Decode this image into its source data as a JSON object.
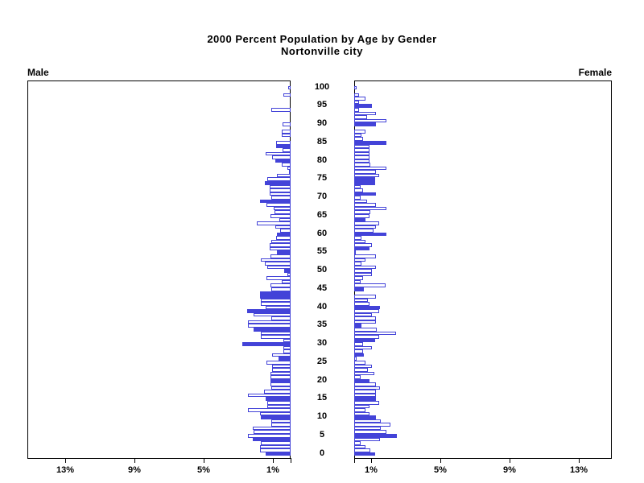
{
  "title": {
    "line1": "2000 Percent Population by Age by Gender",
    "line2": "Nortonville city"
  },
  "panel_labels": {
    "male": "Male",
    "female": "Female"
  },
  "colors": {
    "bar_blue": "#4343d8",
    "bar_fill_empty": "#ffffff",
    "frame_black": "#000000",
    "background": "#ffffff"
  },
  "axes": {
    "age_tick_labels": [
      100,
      95,
      90,
      85,
      80,
      75,
      70,
      65,
      60,
      55,
      50,
      45,
      40,
      35,
      30,
      25,
      20,
      15,
      10,
      5,
      0
    ],
    "pct_tick_values": [
      1,
      5,
      9,
      13
    ],
    "pct_tick_labels_male": [
      "13%",
      "9%",
      "5%",
      "1%"
    ],
    "pct_tick_labels_female": [
      "1%",
      "5%",
      "9%",
      "13%"
    ],
    "pct_axis_max": 14.9
  },
  "chart_data": {
    "type": "bar",
    "subtype": "population-pyramid",
    "title": "2000 Percent Population by Age by Gender",
    "subtitle": "Nortonville city",
    "orientation": "horizontal",
    "unit": "percent of population",
    "age_min": 0,
    "age_max": 100,
    "grid": false,
    "legend": false,
    "series": [
      {
        "name": "Male",
        "side": "left",
        "values_by_age": [
          1.45,
          1.75,
          1.75,
          1.7,
          2.2,
          2.45,
          2.15,
          2.2,
          1.1,
          1.1,
          1.7,
          1.75,
          2.45,
          1.35,
          1.35,
          1.45,
          2.45,
          1.55,
          1.1,
          1.15,
          1.15,
          1.15,
          1.15,
          1.05,
          1.05,
          1.4,
          0.7,
          1.05,
          0.4,
          0.4,
          2.8,
          0.4,
          1.7,
          1.7,
          2.15,
          2.45,
          2.45,
          1.1,
          2.15,
          2.5,
          1.45,
          1.7,
          1.7,
          1.75,
          1.75,
          1.1,
          1.15,
          0.5,
          1.4,
          0.2,
          0.35,
          1.35,
          1.5,
          1.7,
          1.15,
          0.8,
          1.2,
          1.2,
          1.1,
          0.85,
          0.8,
          0.6,
          0.9,
          1.95,
          0.65,
          1.15,
          0.95,
          1.0,
          1.4,
          1.75,
          1.1,
          1.2,
          1.2,
          1.2,
          1.5,
          1.35,
          0.8,
          0.05,
          0.2,
          0.5,
          0.9,
          1.05,
          1.45,
          0.45,
          0.85,
          0.85,
          0,
          0.5,
          0.5,
          0,
          0.45,
          0,
          0,
          0,
          1.1,
          0,
          0,
          0,
          0.4,
          0,
          0.15
        ],
        "solid_filled_ages": [
          0,
          4,
          10,
          15,
          20,
          26,
          30,
          34,
          39,
          43,
          44,
          50,
          55,
          60,
          69,
          74,
          80,
          84
        ]
      },
      {
        "name": "Female",
        "side": "right",
        "values_by_age": [
          1.2,
          0.95,
          0.65,
          0.35,
          1.5,
          2.45,
          1.85,
          1.55,
          2.1,
          1.55,
          1.25,
          0.9,
          0.65,
          0.9,
          1.45,
          1.25,
          1.25,
          1.25,
          1.5,
          1.25,
          0.9,
          0.35,
          1.15,
          0.8,
          1.0,
          0.65,
          0.15,
          0.55,
          0.5,
          1.0,
          0.5,
          1.2,
          1.45,
          2.4,
          1.3,
          0.4,
          1.25,
          1.25,
          1.0,
          1.45,
          1.5,
          0.9,
          0.8,
          1.25,
          0,
          0.55,
          1.8,
          0.35,
          0.5,
          1.0,
          1.0,
          1.25,
          0.4,
          0.65,
          1.25,
          0.1,
          0.9,
          1.0,
          0.65,
          0.4,
          1.85,
          1.1,
          1.25,
          1.45,
          0.65,
          0.9,
          0.95,
          1.85,
          1.25,
          0.75,
          0.35,
          1.25,
          0.5,
          0.35,
          1.2,
          1.2,
          1.45,
          1.25,
          1.85,
          0.95,
          0.9,
          0.9,
          0.9,
          0.9,
          0.9,
          1.85,
          0.5,
          0.4,
          0.65,
          0,
          1.25,
          1.85,
          0.75,
          1.25,
          0.3,
          1.0,
          0.3,
          0.65,
          0.3,
          0,
          0.15
        ],
        "solid_filled_ages": [
          0,
          5,
          10,
          15,
          20,
          27,
          31,
          35,
          40,
          45,
          56,
          60,
          64,
          71,
          74,
          75,
          85,
          90,
          95
        ]
      }
    ]
  }
}
